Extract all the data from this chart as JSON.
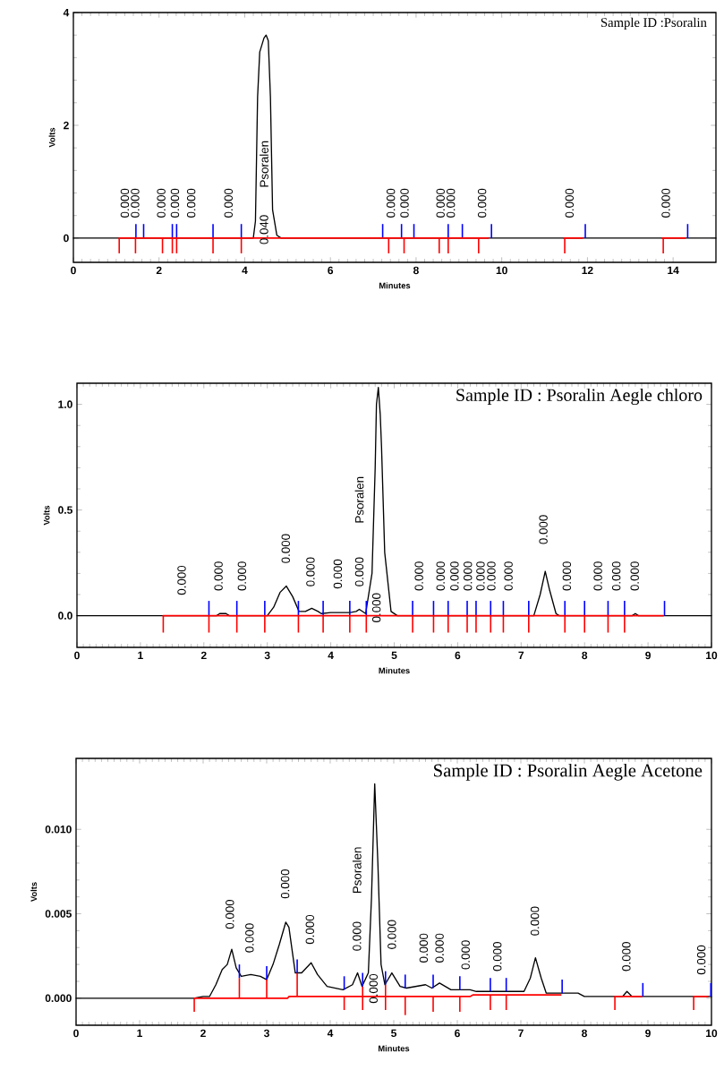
{
  "chart_data": [
    {
      "type": "line",
      "title": "Sample ID :Psoralin",
      "xlabel": "Minutes",
      "ylabel": "Volts",
      "xlim": [
        0,
        15
      ],
      "ylim": [
        -0.43,
        4
      ],
      "xticks": [
        0,
        2,
        4,
        6,
        8,
        10,
        12,
        14
      ],
      "yticks": [
        0,
        2,
        4
      ],
      "series": [
        {
          "type": "line",
          "color": "#000000",
          "x": [
            0,
            4.2,
            4.25,
            4.3,
            4.35,
            4.45,
            4.5,
            4.55,
            4.6,
            4.65,
            4.75,
            4.85,
            15
          ],
          "values": [
            0,
            0,
            0.3,
            2.5,
            3.3,
            3.55,
            3.6,
            3.5,
            2.5,
            0.5,
            0.05,
            0,
            0
          ]
        },
        {
          "type": "line",
          "color": "#ff0000",
          "x": [
            1.07,
            9.68,
            10.5,
            11.45,
            11.88,
            13,
            13.75,
            14.28
          ],
          "values": [
            0,
            0,
            null,
            0,
            0,
            null,
            0,
            0
          ]
        },
        {
          "type": "bar",
          "color": "#ff0000",
          "x": [
            1.07,
            1.45,
            2.08,
            2.31,
            2.41,
            3.26,
            3.92,
            7.36,
            7.72,
            8.54,
            8.75,
            9.46,
            11.47,
            13.77
          ],
          "values": [
            -0.27,
            -0.27,
            -0.27,
            -0.27,
            -0.27,
            -0.27,
            -0.27,
            -0.27,
            -0.27,
            -0.27,
            -0.27,
            -0.27,
            -0.27,
            -0.27
          ]
        },
        {
          "type": "bar",
          "color": "#0000ff",
          "x": [
            1.46,
            1.64,
            2.31,
            2.41,
            3.26,
            3.92,
            7.22,
            7.66,
            7.95,
            8.75,
            9.08,
            9.76,
            11.95,
            14.34
          ],
          "values": [
            0.25,
            0.25,
            0.25,
            0.25,
            0.25,
            0.25,
            0.25,
            0.25,
            0.25,
            0.25,
            0.25,
            0.25,
            0.25,
            0.25
          ]
        }
      ],
      "annotations": [
        "0.000",
        "0.000",
        "0.000",
        "0.000",
        "0.000",
        "0.000",
        "0.040",
        "Psoralen",
        "0.000",
        "0.000",
        "0.000",
        "0.000",
        "0.000",
        "0.000",
        "0.000"
      ]
    },
    {
      "type": "line",
      "title": "Sample ID : Psoralin Aegle chloro",
      "xlabel": "Minutes",
      "ylabel": "Volts",
      "xlim": [
        0,
        10
      ],
      "ylim": [
        -0.15,
        1.1
      ],
      "xticks": [
        0,
        1,
        2,
        3,
        4,
        5,
        6,
        7,
        8,
        9,
        10
      ],
      "yticks": [
        {
          "value": 0,
          "label": "0.0"
        },
        {
          "value": 0.5,
          "label": "0.5"
        },
        {
          "value": 1,
          "label": "1.0"
        }
      ],
      "series": [
        {
          "type": "line",
          "color": "#000000",
          "x": [
            0,
            2.2,
            2.25,
            2.35,
            2.4,
            3.0,
            3.1,
            3.2,
            3.3,
            3.4,
            3.5,
            3.6,
            3.7,
            3.8,
            3.85,
            4.0,
            4.3,
            4.4,
            4.45,
            4.55,
            4.65,
            4.7,
            4.72,
            4.75,
            4.78,
            4.8,
            4.85,
            4.95,
            5.05,
            7.2,
            7.3,
            7.38,
            7.45,
            7.55,
            7.6,
            8.75,
            8.8,
            8.85,
            10
          ],
          "values": [
            0,
            0,
            0.01,
            0.01,
            0,
            0,
            0.04,
            0.11,
            0.14,
            0.09,
            0.02,
            0.02,
            0.035,
            0.02,
            0.01,
            0.015,
            0.015,
            0.02,
            0.03,
            0.01,
            0.2,
            0.7,
            1.0,
            1.08,
            0.95,
            0.8,
            0.3,
            0.02,
            0,
            0,
            0.1,
            0.21,
            0.12,
            0.01,
            0,
            0,
            0.01,
            0,
            0
          ]
        },
        {
          "type": "line",
          "color": "#ff0000",
          "x": [
            1.36,
            9.24
          ],
          "values": [
            0,
            0
          ]
        },
        {
          "type": "bar",
          "color": "#ff0000",
          "x": [
            1.36,
            2.08,
            2.52,
            2.96,
            3.49,
            3.88,
            4.3,
            4.56,
            5.29,
            5.62,
            5.85,
            6.15,
            6.29,
            6.52,
            6.72,
            7.12,
            7.69,
            8.0,
            8.37,
            8.63
          ],
          "values": [
            -0.08,
            -0.08,
            -0.08,
            -0.08,
            -0.08,
            -0.08,
            -0.08,
            -0.08,
            -0.08,
            -0.08,
            -0.08,
            -0.08,
            -0.08,
            -0.08,
            -0.08,
            -0.08,
            -0.08,
            -0.08,
            -0.08,
            -0.08
          ]
        },
        {
          "type": "bar",
          "color": "#0000ff",
          "x": [
            2.08,
            2.52,
            2.96,
            3.49,
            3.88,
            4.3,
            4.56,
            5.29,
            5.62,
            5.85,
            6.15,
            6.29,
            6.52,
            6.72,
            7.12,
            7.69,
            8.0,
            8.37,
            8.63,
            9.26
          ],
          "values": [
            0.07,
            0.07,
            0.07,
            0.07,
            0.07,
            0.07,
            0.07,
            0.07,
            0.07,
            0.07,
            0.07,
            0.07,
            0.07,
            0.07,
            0.07,
            0.07,
            0.07,
            0.07,
            0.07,
            0.07
          ]
        }
      ],
      "annotations": [
        "0.000",
        "0.000",
        "0.000",
        "0.000",
        "0.000",
        "0.000",
        "0.000",
        "Psoralen",
        "0.000",
        "0.000",
        "0.000",
        "0.000",
        "0.000",
        "0.000",
        "0.000",
        "0.000",
        "0.000",
        "0.000",
        "0.000",
        "0.000",
        "0.000"
      ]
    },
    {
      "type": "line",
      "title": "Sample ID :  Psoralin Aegle Acetone",
      "xlabel": "Minutes",
      "ylabel": "Volts",
      "xlim": [
        0,
        10
      ],
      "ylim": [
        -0.0016,
        0.0142
      ],
      "xticks": [
        0,
        1,
        2,
        3,
        4,
        5,
        6,
        7,
        8,
        9,
        10
      ],
      "yticks": [
        {
          "value": 0,
          "label": "0.000"
        },
        {
          "value": 0.005,
          "label": "0.005"
        },
        {
          "value": 0.01,
          "label": "0.010"
        }
      ],
      "series": [
        {
          "type": "line",
          "color": "#000000",
          "x": [
            0,
            1.85,
            2.0,
            2.1,
            2.2,
            2.3,
            2.38,
            2.45,
            2.52,
            2.6,
            2.75,
            2.9,
            3.0,
            3.1,
            3.2,
            3.3,
            3.35,
            3.45,
            3.55,
            3.7,
            3.8,
            3.95,
            4.2,
            4.35,
            4.43,
            4.5,
            4.6,
            4.65,
            4.7,
            4.75,
            4.8,
            4.86,
            4.97,
            5.1,
            5.2,
            5.5,
            5.6,
            5.72,
            5.9,
            6.2,
            6.3,
            7.05,
            7.15,
            7.23,
            7.32,
            7.4,
            7.9,
            8.0,
            8.6,
            8.67,
            8.75,
            10
          ],
          "values": [
            0,
            0,
            0.0001,
            0.0001,
            0.0008,
            0.0017,
            0.002,
            0.0029,
            0.0018,
            0.0013,
            0.0014,
            0.0013,
            0.0011,
            0.002,
            0.0032,
            0.0045,
            0.0042,
            0.0015,
            0.0015,
            0.0021,
            0.0014,
            0.0007,
            0.0005,
            0.0008,
            0.0015,
            0.0007,
            0.0015,
            0.006,
            0.0127,
            0.008,
            0.002,
            0.0008,
            0.0015,
            0.0007,
            0.0006,
            0.0008,
            0.0006,
            0.0009,
            0.0005,
            0.0005,
            0.0004,
            0.0004,
            0.0012,
            0.0024,
            0.0012,
            0.0003,
            0.0003,
            0.0001,
            0.0001,
            0.0004,
            0.0001,
            0.0001
          ]
        },
        {
          "type": "line",
          "color": "#ff0000",
          "x": [
            1.86,
            3.33,
            3.35,
            6.2,
            6.25,
            7.63,
            8.0,
            8.48,
            8.9,
            9.3,
            9.72,
            9.94
          ],
          "values": [
            0,
            0,
            0.0001,
            0.0001,
            0.0002,
            0.0002,
            null,
            0.0001,
            0.0001,
            null,
            0.0001,
            0.0001
          ]
        },
        {
          "type": "bar",
          "color": "#ff0000",
          "x": [
            1.86,
            2.57,
            3.0,
            3.48,
            4.22,
            4.51,
            4.87,
            5.18,
            5.62,
            6.04,
            6.52,
            6.77,
            8.48,
            9.72
          ],
          "base": [
            0,
            0.0012,
            0.0011,
            0.0015,
            0.0001,
            0.0007,
            0.0008,
            0.0001,
            0.0001,
            0.0001,
            0.0002,
            0.0002,
            0.0001,
            0.0001
          ],
          "values": [
            -0.0008,
            -0.0012,
            -0.0011,
            -0.0014,
            -0.0008,
            -0.0014,
            -0.0015,
            -0.0011,
            -0.0009,
            -0.0009,
            -0.0009,
            -0.0009,
            -0.0008,
            -0.0008
          ]
        },
        {
          "type": "bar",
          "color": "#0000ff",
          "x": [
            2.57,
            3.0,
            3.48,
            4.22,
            4.51,
            4.87,
            5.18,
            5.62,
            6.04,
            6.52,
            6.77,
            7.65,
            8.92,
            9.99
          ],
          "base": [
            0.0012,
            0.0011,
            0.0015,
            0.0005,
            0.0007,
            0.0008,
            0.0006,
            0.0006,
            0.0005,
            0.0004,
            0.0004,
            0.0003,
            0.0001,
            0.0001
          ],
          "values": [
            0.0008,
            0.0008,
            0.0008,
            0.0008,
            0.0008,
            0.0008,
            0.0008,
            0.0008,
            0.0008,
            0.0008,
            0.0008,
            0.0008,
            0.0008,
            0.0008
          ]
        }
      ],
      "annotations": [
        "0.000",
        "0.000",
        "0.000",
        "0.000",
        "0.000",
        "Psoralen",
        "0.000",
        "0.000",
        "0.000",
        "0.000",
        "0.000",
        "0.000",
        "0.000",
        "0.000",
        "0.000"
      ]
    }
  ]
}
